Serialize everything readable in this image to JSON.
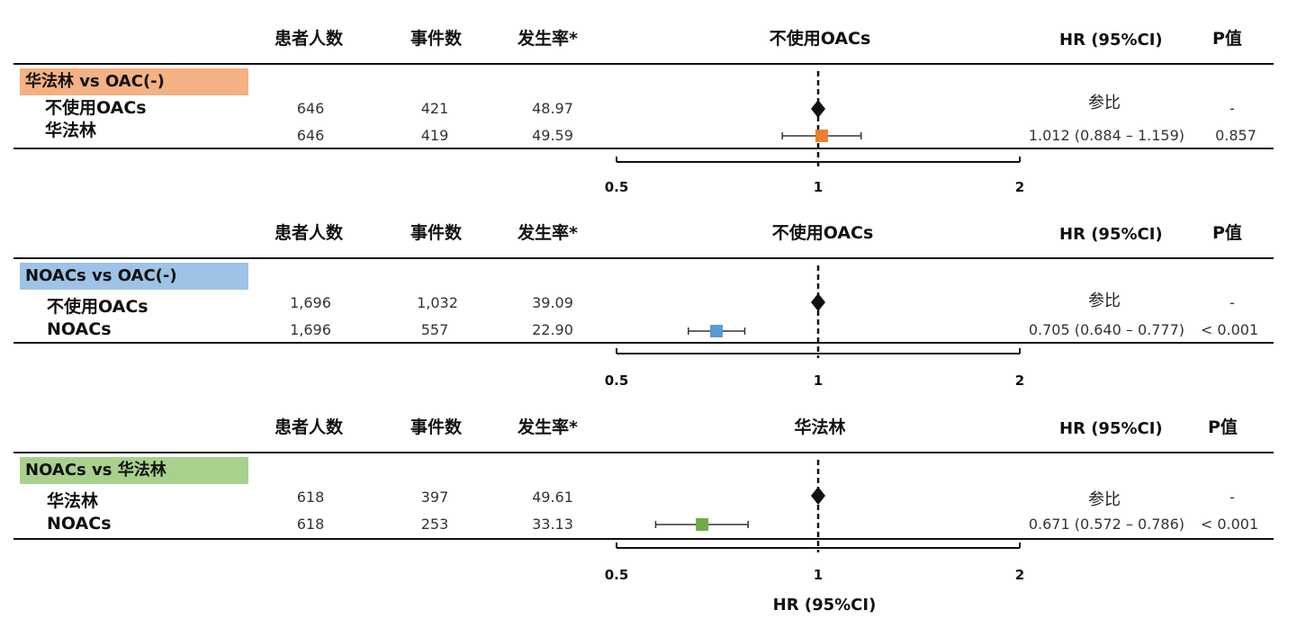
{
  "columns": {
    "patients": "患者人数",
    "events": "事件数",
    "rate": "发生率*",
    "hr": "HR (95%CI)",
    "p": "P值"
  },
  "axis_ticks": [
    "0.5",
    "1",
    "2"
  ],
  "footer_label": "HR (95%CI)",
  "colors": {
    "orange": "#F4B183",
    "orange_marker": "#ED7D31",
    "blue": "#9DC3E6",
    "blue_marker": "#5B9BD5",
    "green": "#A9D18E",
    "green_marker": "#70AD47"
  },
  "chart_data": [
    {
      "type": "forest",
      "x_scale": "log",
      "xlim": [
        0.5,
        2
      ],
      "reference_line": 1,
      "center_label": "不使用OACs",
      "comparison_label": "华法林 vs OAC(-)",
      "rows": [
        {
          "label": "不使用OACs",
          "patients": "646",
          "events": "421",
          "rate": "48.97",
          "hr_text": "参比",
          "p": "-",
          "hr": 1,
          "reference": true
        },
        {
          "label": "华法林",
          "patients": "646",
          "events": "419",
          "rate": "49.59",
          "hr_text": "1.012 (0.884 – 1.159)",
          "p": "0.857",
          "hr": 1.012,
          "ci": [
            0.884,
            1.159
          ]
        }
      ]
    },
    {
      "type": "forest",
      "x_scale": "log",
      "xlim": [
        0.5,
        2
      ],
      "reference_line": 1,
      "center_label": "不使用OACs",
      "comparison_label": "NOACs vs OAC(-)",
      "rows": [
        {
          "label": "不使用OACs",
          "patients": "1,696",
          "events": "1,032",
          "rate": "39.09",
          "hr_text": "参比",
          "p": "-",
          "hr": 1,
          "reference": true
        },
        {
          "label": "NOACs",
          "patients": "1,696",
          "events": "557",
          "rate": "22.90",
          "hr_text": "0.705 (0.640 – 0.777)",
          "p": "< 0.001",
          "hr": 0.705,
          "ci": [
            0.64,
            0.777
          ]
        }
      ]
    },
    {
      "type": "forest",
      "x_scale": "log",
      "xlim": [
        0.5,
        2
      ],
      "reference_line": 1,
      "center_label": "华法林",
      "comparison_label": "NOACs vs 华法林",
      "rows": [
        {
          "label": "华法林",
          "patients": "618",
          "events": "397",
          "rate": "49.61",
          "hr_text": "参比",
          "p": "-",
          "hr": 1,
          "reference": true
        },
        {
          "label": "NOACs",
          "patients": "618",
          "events": "253",
          "rate": "33.13",
          "hr_text": "0.671 (0.572 – 0.786)",
          "p": "< 0.001",
          "hr": 0.671,
          "ci": [
            0.572,
            0.786
          ]
        }
      ]
    }
  ]
}
